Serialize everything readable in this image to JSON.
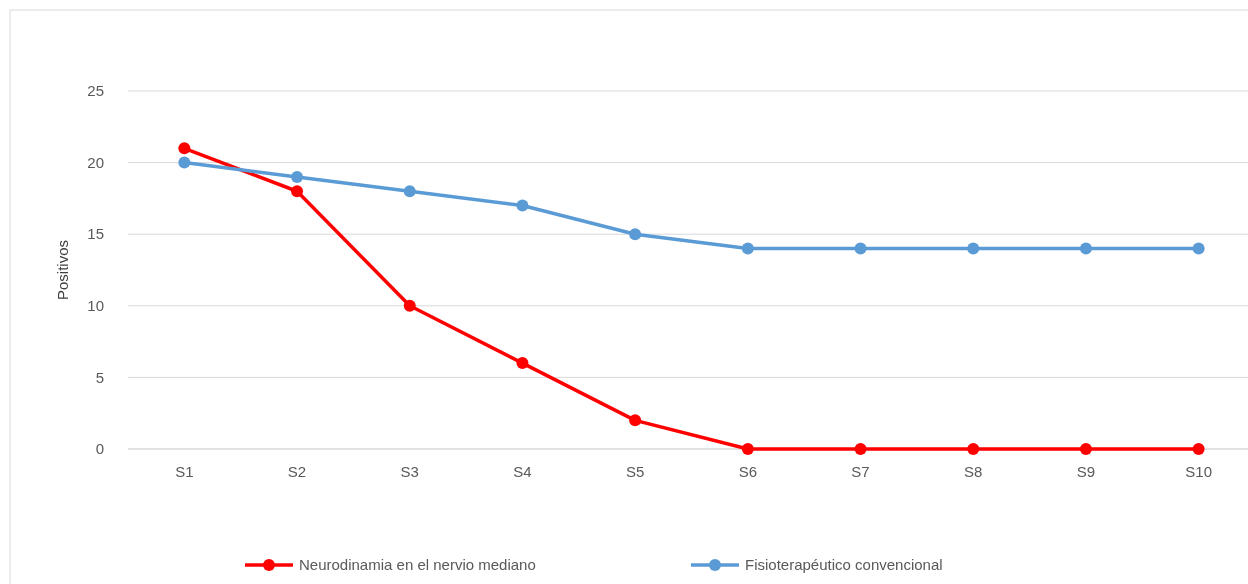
{
  "chart_data": {
    "type": "line",
    "ylabel": "Positivos",
    "categories": [
      "S1",
      "S2",
      "S3",
      "S4",
      "S5",
      "S6",
      "S7",
      "S8",
      "S9",
      "S10"
    ],
    "series": [
      {
        "name": "Neurodinamia en el nervio mediano",
        "color": "#ff0000",
        "values": [
          21,
          18,
          10,
          6,
          2,
          0,
          0,
          0,
          0,
          0
        ]
      },
      {
        "name": "Fisioterapéutico convencional",
        "color": "#5b9bd5",
        "values": [
          20,
          19,
          18,
          17,
          15,
          14,
          14,
          14,
          14,
          14
        ]
      }
    ],
    "ylim": [
      0,
      25
    ],
    "yticks": [
      0,
      5,
      10,
      15,
      20,
      25
    ],
    "grid": "y",
    "legend": "bottom",
    "marker": "circle",
    "line_style": "solid"
  }
}
